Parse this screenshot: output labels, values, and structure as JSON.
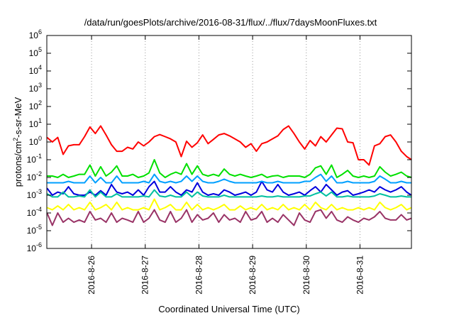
{
  "chart_data": {
    "type": "line",
    "title": "/data/run/goesPlots/archive/2016-08-31/flux/../flux/7daysMoonFluxes.txt",
    "xlabel": "Coordinated Universal Time (UTC)",
    "ylabel": {
      "before": "protons/cm",
      "sup": "2",
      "after": "-s-sr-MeV"
    },
    "yscale": "log",
    "ylim": [
      1e-06,
      1000000.0
    ],
    "y_ticks": [
      {
        "base": "10",
        "exp": "-6",
        "value": -6
      },
      {
        "base": "10",
        "exp": "-5",
        "value": -5
      },
      {
        "base": "10",
        "exp": "-4",
        "value": -4
      },
      {
        "base": "10",
        "exp": "-3",
        "value": -3
      },
      {
        "base": "10",
        "exp": "-2",
        "value": -2
      },
      {
        "base": "10",
        "exp": "-1",
        "value": -1
      },
      {
        "base": "10",
        "exp": "0",
        "value": 0
      },
      {
        "base": "10",
        "exp": "1",
        "value": 1
      },
      {
        "base": "10",
        "exp": "2",
        "value": 2
      },
      {
        "base": "10",
        "exp": "3",
        "value": 3
      },
      {
        "base": "10",
        "exp": "4",
        "value": 4
      },
      {
        "base": "10",
        "exp": "5",
        "value": 5
      },
      {
        "base": "10",
        "exp": "6",
        "value": 6
      }
    ],
    "xlim": [
      "2016-08-25 04:00",
      "2016-08-31 23:00"
    ],
    "x_ticks": [
      "2016-8-26",
      "2016-8-27",
      "2016-8-28",
      "2016-8-29",
      "2016-8-30",
      "2016-8-31"
    ],
    "grid": "dotted, at x ticks",
    "legend": "none",
    "x_days": [
      0.17,
      0.27,
      0.37,
      0.47,
      0.57,
      0.67,
      0.77,
      0.87,
      0.97,
      1.07,
      1.17,
      1.27,
      1.37,
      1.47,
      1.57,
      1.67,
      1.77,
      1.87,
      1.97,
      2.07,
      2.17,
      2.27,
      2.37,
      2.47,
      2.57,
      2.67,
      2.77,
      2.87,
      2.97,
      3.07,
      3.17,
      3.27,
      3.37,
      3.47,
      3.57,
      3.67,
      3.77,
      3.87,
      3.97,
      4.07,
      4.17,
      4.27,
      4.37,
      4.47,
      4.57,
      4.67,
      4.77,
      4.87,
      4.97,
      5.07,
      5.17,
      5.27,
      5.37,
      5.47,
      5.57,
      5.67,
      5.77,
      5.87,
      5.97,
      6.07,
      6.17,
      6.27,
      6.37,
      6.47,
      6.57,
      6.67,
      6.77,
      6.87,
      6.96
    ],
    "series": [
      {
        "color": "#ff0000",
        "values": [
          1.8,
          1.0,
          1.8,
          0.2,
          0.6,
          0.7,
          0.7,
          2.0,
          7.0,
          3.0,
          8.0,
          2.5,
          0.7,
          0.3,
          0.3,
          0.5,
          0.4,
          1.0,
          0.6,
          1.0,
          2.0,
          2.6,
          2.0,
          1.5,
          1.0,
          0.15,
          1.1,
          0.5,
          0.9,
          2.5,
          0.8,
          1.4,
          2.5,
          3.0,
          2.2,
          1.5,
          1.0,
          0.5,
          0.8,
          0.3,
          0.8,
          1.0,
          1.5,
          2.2,
          5.0,
          8.0,
          3.0,
          1.0,
          0.4,
          1.2,
          0.6,
          2.0,
          1.0,
          2.5,
          6.0,
          5.5,
          1.0,
          0.9,
          0.1,
          0.1,
          0.05,
          0.6,
          0.8,
          2.0,
          2.5,
          1.0,
          0.3,
          0.15,
          0.1
        ]
      },
      {
        "color": "#00e000",
        "values": [
          0.012,
          0.012,
          0.01,
          0.015,
          0.01,
          0.012,
          0.015,
          0.015,
          0.05,
          0.012,
          0.04,
          0.012,
          0.02,
          0.045,
          0.012,
          0.012,
          0.015,
          0.01,
          0.012,
          0.018,
          0.1,
          0.018,
          0.01,
          0.015,
          0.02,
          0.015,
          0.06,
          0.015,
          0.045,
          0.015,
          0.012,
          0.015,
          0.012,
          0.03,
          0.015,
          0.012,
          0.015,
          0.012,
          0.01,
          0.012,
          0.015,
          0.01,
          0.012,
          0.013,
          0.01,
          0.012,
          0.012,
          0.012,
          0.01,
          0.015,
          0.035,
          0.045,
          0.015,
          0.05,
          0.01,
          0.015,
          0.025,
          0.012,
          0.01,
          0.012,
          0.01,
          0.012,
          0.04,
          0.02,
          0.012,
          0.015,
          0.02,
          0.012,
          0.01
        ]
      },
      {
        "color": "#0000dd",
        "values": [
          0.0025,
          0.001,
          0.0015,
          0.0012,
          0.003,
          0.0012,
          0.001,
          0.001,
          0.0015,
          0.001,
          0.0018,
          0.001,
          0.004,
          0.0015,
          0.0012,
          0.0015,
          0.001,
          0.002,
          0.001,
          0.003,
          0.006,
          0.0015,
          0.0015,
          0.003,
          0.0015,
          0.001,
          0.002,
          0.0015,
          0.005,
          0.0015,
          0.001,
          0.0012,
          0.001,
          0.002,
          0.0015,
          0.001,
          0.0012,
          0.0015,
          0.001,
          0.0015,
          0.006,
          0.002,
          0.0015,
          0.004,
          0.0015,
          0.001,
          0.0012,
          0.0015,
          0.001,
          0.0018,
          0.003,
          0.0015,
          0.004,
          0.002,
          0.001,
          0.0015,
          0.0018,
          0.001,
          0.0012,
          0.0015,
          0.002,
          0.0015,
          0.003,
          0.002,
          0.0015,
          0.002,
          0.003,
          0.0015,
          0.001
        ]
      },
      {
        "color": "#00a0ff",
        "values": [
          0.005,
          0.005,
          0.005,
          0.005,
          0.006,
          0.005,
          0.005,
          0.005,
          0.012,
          0.005,
          0.01,
          0.005,
          0.005,
          0.012,
          0.005,
          0.005,
          0.005,
          0.005,
          0.006,
          0.005,
          0.015,
          0.006,
          0.005,
          0.006,
          0.005,
          0.006,
          0.012,
          0.006,
          0.012,
          0.006,
          0.005,
          0.005,
          0.006,
          0.008,
          0.006,
          0.005,
          0.005,
          0.005,
          0.005,
          0.005,
          0.006,
          0.005,
          0.005,
          0.006,
          0.005,
          0.005,
          0.005,
          0.005,
          0.006,
          0.006,
          0.01,
          0.015,
          0.006,
          0.012,
          0.005,
          0.005,
          0.006,
          0.005,
          0.005,
          0.005,
          0.005,
          0.006,
          0.012,
          0.008,
          0.005,
          0.005,
          0.006,
          0.005,
          0.005
        ]
      },
      {
        "color": "#00c0a0",
        "values": [
          0.0012,
          0.0008,
          0.0008,
          0.0015,
          0.0008,
          0.0008,
          0.0009,
          0.0008,
          0.002,
          0.0008,
          0.0015,
          0.0008,
          0.0008,
          0.0012,
          0.0008,
          0.0008,
          0.0008,
          0.0008,
          0.0009,
          0.0008,
          0.002,
          0.0009,
          0.0008,
          0.001,
          0.0008,
          0.0008,
          0.0015,
          0.0008,
          0.0015,
          0.0009,
          0.0008,
          0.0008,
          0.0008,
          0.001,
          0.0008,
          0.0008,
          0.0008,
          0.0008,
          0.0008,
          0.0008,
          0.0009,
          0.0008,
          0.0008,
          0.0009,
          0.0008,
          0.0008,
          0.0008,
          0.0008,
          0.0009,
          0.0009,
          0.0012,
          0.0015,
          0.0009,
          0.0015,
          0.0008,
          0.0008,
          0.0009,
          0.0008,
          0.0008,
          0.0008,
          0.0008,
          0.0009,
          0.0012,
          0.001,
          0.0008,
          0.0008,
          0.0009,
          0.0008,
          0.0008
        ]
      },
      {
        "color": "#ffff00",
        "values": [
          0.0002,
          0.00015,
          0.00025,
          0.00015,
          0.0003,
          0.00015,
          0.0002,
          0.00015,
          0.0004,
          0.00015,
          0.0002,
          0.0003,
          0.00015,
          0.0004,
          0.00015,
          0.0002,
          0.00015,
          0.00015,
          0.0002,
          0.00015,
          0.0006,
          0.00015,
          0.0002,
          0.0003,
          0.00015,
          0.00015,
          0.0004,
          0.00015,
          0.0003,
          0.00015,
          0.0002,
          0.00015,
          0.0002,
          0.0003,
          0.00015,
          0.00015,
          0.00025,
          0.00015,
          0.0002,
          0.00015,
          0.0003,
          0.00015,
          0.0002,
          0.00015,
          0.0003,
          0.00015,
          0.0002,
          0.00015,
          0.0003,
          0.00015,
          0.0004,
          0.0002,
          0.00015,
          0.0003,
          0.00015,
          0.0002,
          0.00015,
          0.00015,
          0.0002,
          0.00015,
          0.0002,
          0.00015,
          0.0004,
          0.0002,
          0.00015,
          0.0002,
          0.0003,
          0.00015,
          0.0002
        ]
      },
      {
        "color": "#993366",
        "values": [
          0.0001,
          2e-05,
          0.0001,
          3e-05,
          5e-05,
          3e-05,
          4e-05,
          3e-05,
          0.00012,
          4e-05,
          5e-05,
          3e-05,
          0.0001,
          3e-05,
          5e-05,
          4e-05,
          3e-05,
          0.00012,
          3e-05,
          5e-05,
          0.00015,
          4e-05,
          3e-05,
          0.00012,
          3e-05,
          5e-05,
          0.00015,
          3e-05,
          8e-05,
          4e-05,
          5e-05,
          0.0001,
          3e-05,
          8e-05,
          4e-05,
          5e-05,
          3e-05,
          0.00012,
          4e-05,
          5e-05,
          0.00012,
          3e-05,
          5e-05,
          3e-05,
          8e-05,
          4e-05,
          2e-05,
          0.0001,
          4e-05,
          3e-05,
          0.00012,
          0.00015,
          5e-05,
          0.00012,
          4e-05,
          3e-05,
          6e-05,
          4e-05,
          3e-05,
          5e-05,
          4e-05,
          6e-05,
          0.00012,
          5e-05,
          4e-05,
          4e-05,
          8e-05,
          4e-05,
          5e-05
        ]
      }
    ]
  }
}
